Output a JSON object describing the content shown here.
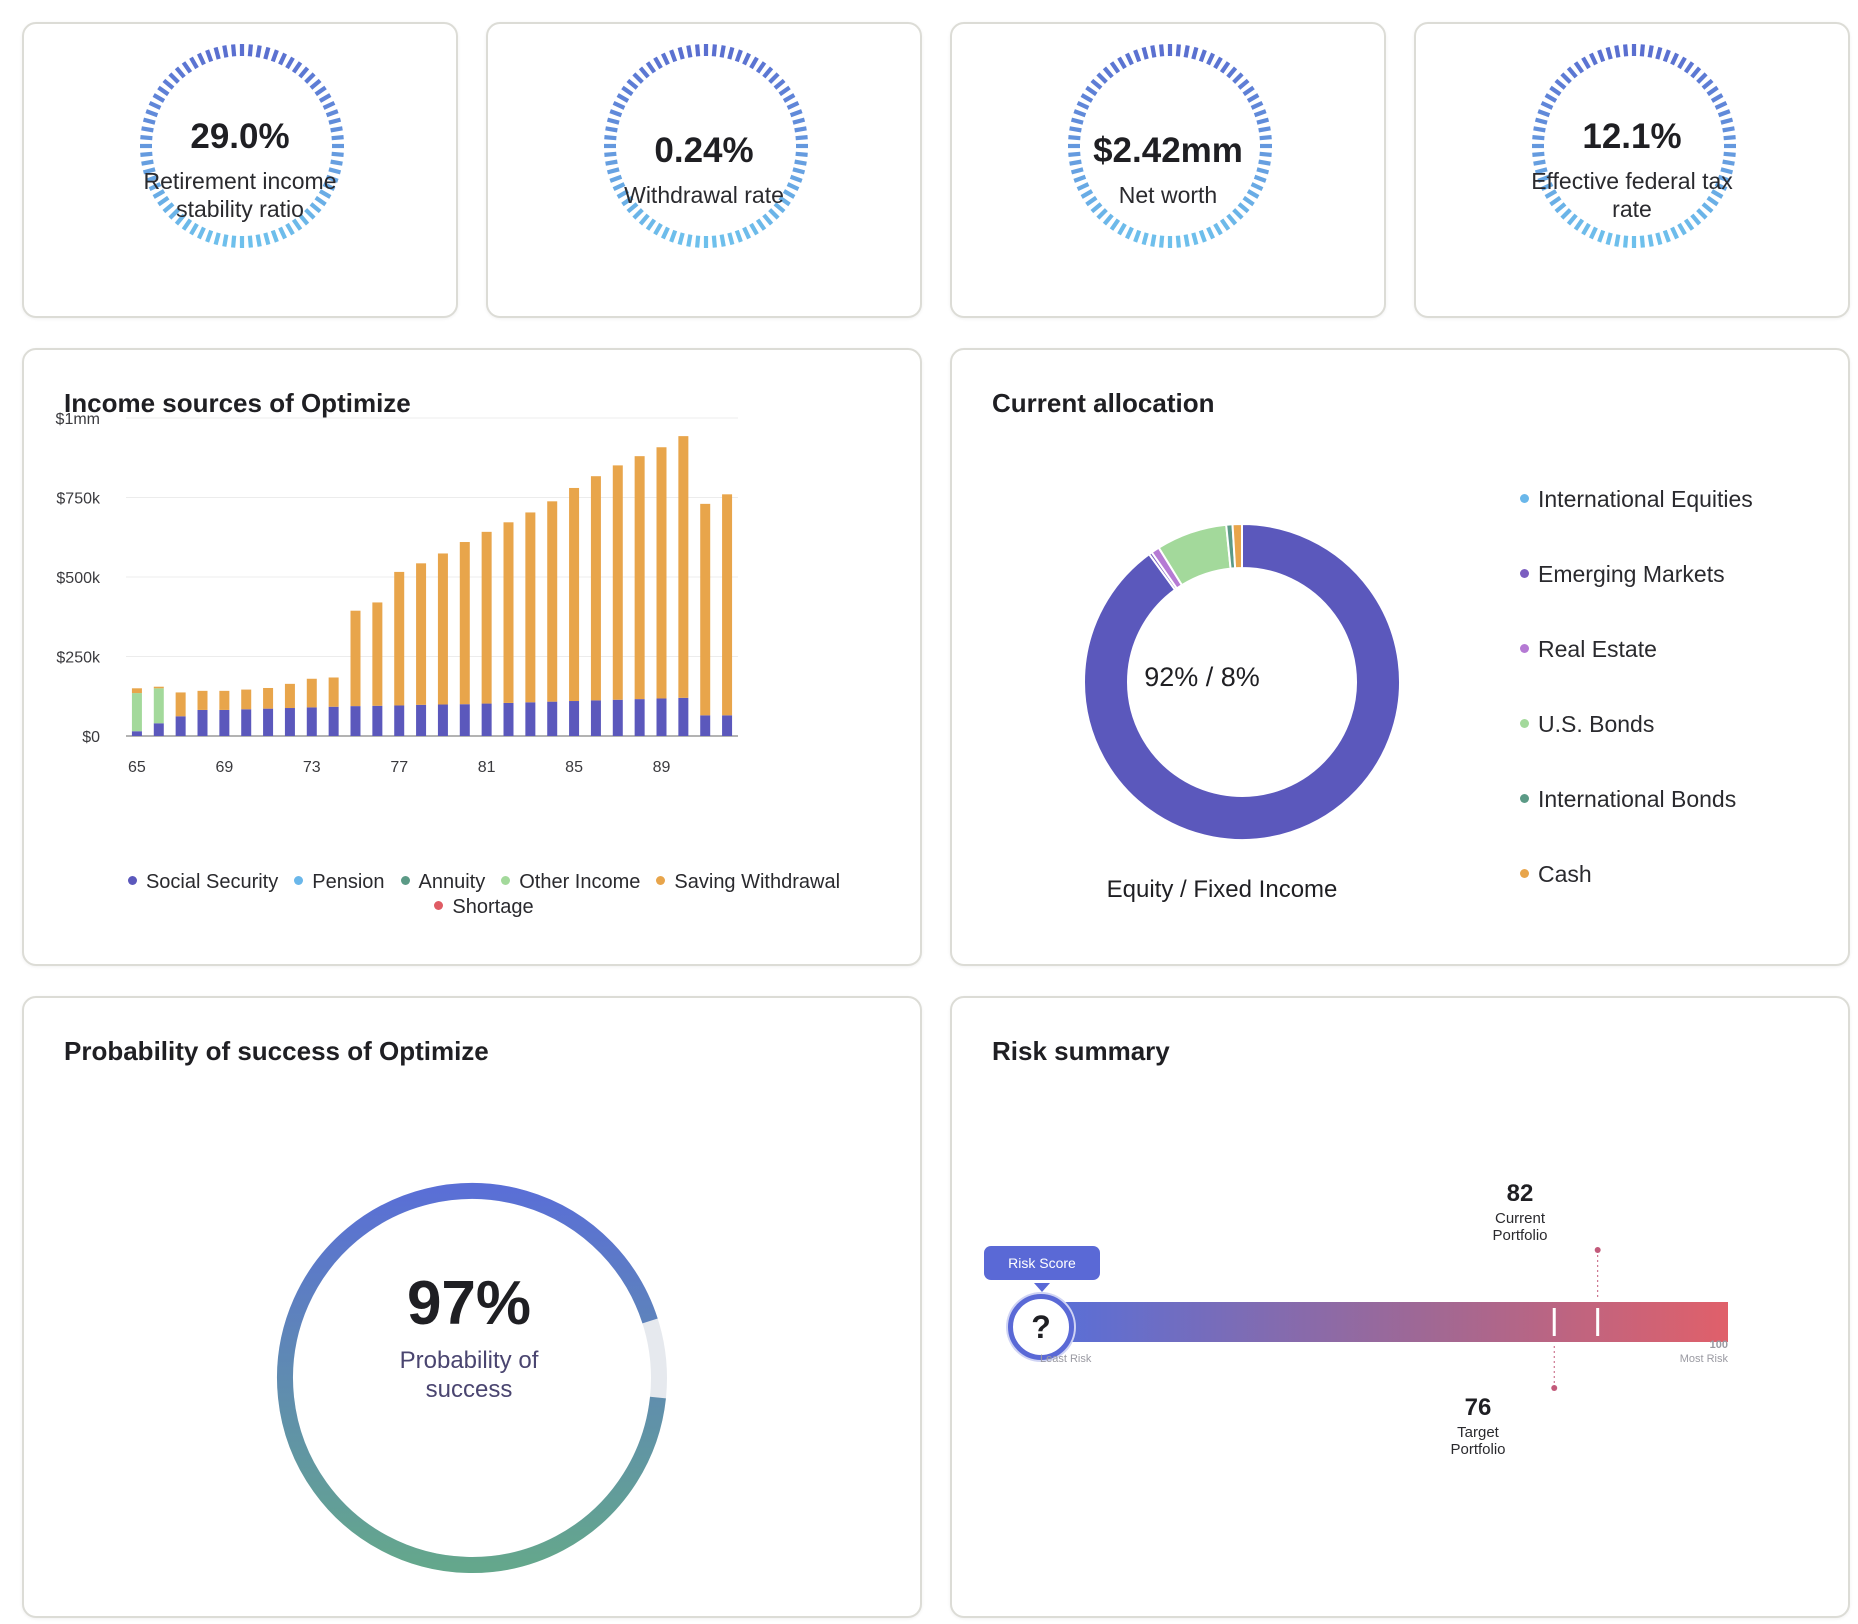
{
  "kpis": [
    {
      "value": "29.0%",
      "label": "Retirement income stability ratio"
    },
    {
      "value": "0.24%",
      "label": "Withdrawal rate"
    },
    {
      "value": "$2.42mm",
      "label": "Net worth"
    },
    {
      "value": "12.1%",
      "label": "Effective federal tax rate"
    }
  ],
  "income": {
    "title": "Income sources of Optimize",
    "legend": [
      {
        "name": "Social Security",
        "color": "#5b58bc"
      },
      {
        "name": "Pension",
        "color": "#6ab7ea"
      },
      {
        "name": "Annuity",
        "color": "#5b9a86"
      },
      {
        "name": "Other Income",
        "color": "#a3d99b"
      },
      {
        "name": "Saving Withdrawal",
        "color": "#e8a54b"
      },
      {
        "name": "Shortage",
        "color": "#df5c64"
      }
    ]
  },
  "allocation": {
    "title": "Current allocation",
    "center_label": "92% / 8%",
    "caption": "Equity / Fixed Income",
    "legend": [
      {
        "name": "International Equities",
        "color": "#6ab7ea"
      },
      {
        "name": "Emerging Markets",
        "color": "#7b5ec0"
      },
      {
        "name": "Real Estate",
        "color": "#b57ad4"
      },
      {
        "name": "U.S. Bonds",
        "color": "#a3d99b"
      },
      {
        "name": "International Bonds",
        "color": "#5b9a86"
      },
      {
        "name": "Cash",
        "color": "#e8a54b"
      }
    ]
  },
  "probability": {
    "title": "Probability of success of Optimize",
    "value": "97%",
    "label": "Probability of success",
    "fraction": 0.97
  },
  "risk": {
    "title": "Risk summary",
    "badge": "Risk Score",
    "question": "?",
    "least_label": "Least Risk",
    "most_label": "Most Risk",
    "max_value": "100",
    "current": {
      "score": "82",
      "label": "Current Portfolio",
      "value": 82
    },
    "target": {
      "score": "76",
      "label": "Target Portfolio",
      "value": 76
    }
  },
  "chart_data": [
    {
      "type": "bar",
      "stacked": true,
      "title": "Income sources of Optimize",
      "x": [
        65,
        66,
        67,
        68,
        69,
        70,
        71,
        72,
        73,
        74,
        75,
        76,
        77,
        78,
        79,
        80,
        81,
        82,
        83,
        84,
        85,
        86,
        87,
        88,
        89,
        90,
        91,
        92
      ],
      "x_tick_labels": [
        "65",
        "69",
        "73",
        "77",
        "81",
        "85",
        "89"
      ],
      "y_tick_labels": [
        "$0",
        "$250k",
        "$500k",
        "$750k",
        "$1mm"
      ],
      "ylim": [
        0,
        1000000
      ],
      "series": [
        {
          "name": "Social Security",
          "values": [
            15000,
            40000,
            62000,
            82000,
            82000,
            84000,
            86000,
            88000,
            90000,
            92000,
            94000,
            95000,
            96000,
            98000,
            99000,
            100000,
            102000,
            104000,
            106000,
            108000,
            110000,
            112000,
            114000,
            116000,
            118000,
            120000,
            65000,
            65000
          ]
        },
        {
          "name": "Pension",
          "values": [
            0,
            0,
            0,
            0,
            0,
            0,
            0,
            0,
            0,
            0,
            0,
            0,
            0,
            0,
            0,
            0,
            0,
            0,
            0,
            0,
            0,
            0,
            0,
            0,
            0,
            0,
            0,
            0
          ]
        },
        {
          "name": "Annuity",
          "values": [
            0,
            0,
            0,
            0,
            0,
            0,
            0,
            0,
            0,
            0,
            0,
            0,
            0,
            0,
            0,
            0,
            0,
            0,
            0,
            0,
            0,
            0,
            0,
            0,
            0,
            0,
            0,
            0
          ]
        },
        {
          "name": "Other Income",
          "values": [
            120000,
            110000,
            0,
            0,
            0,
            0,
            0,
            0,
            0,
            0,
            0,
            0,
            0,
            0,
            0,
            0,
            0,
            0,
            0,
            0,
            0,
            0,
            0,
            0,
            0,
            0,
            0,
            0
          ]
        },
        {
          "name": "Saving Withdrawal",
          "values": [
            15000,
            5000,
            75000,
            60000,
            60000,
            62000,
            65000,
            76000,
            90000,
            92000,
            300000,
            325000,
            420000,
            445000,
            475000,
            510000,
            540000,
            568000,
            597000,
            630000,
            670000,
            705000,
            737000,
            764000,
            790000,
            823000,
            665000,
            695000
          ]
        },
        {
          "name": "Shortage",
          "values": [
            0,
            0,
            0,
            0,
            0,
            0,
            0,
            0,
            0,
            0,
            0,
            0,
            0,
            0,
            0,
            0,
            0,
            0,
            0,
            0,
            0,
            0,
            0,
            0,
            0,
            0,
            0,
            0
          ]
        }
      ],
      "legend_position": "bottom",
      "grid": true
    },
    {
      "type": "pie",
      "title": "Current allocation",
      "labels": [
        "International Equities",
        "Emerging Markets",
        "Real Estate",
        "U.S. Bonds",
        "International Bonds",
        "Cash"
      ],
      "values": [
        85.9,
        0.3,
        0.8,
        6.8,
        0.6,
        0.9
      ],
      "leading_segment": {
        "name": "Equity",
        "value": 84.6,
        "color": "#5b58bc"
      }
    }
  ]
}
